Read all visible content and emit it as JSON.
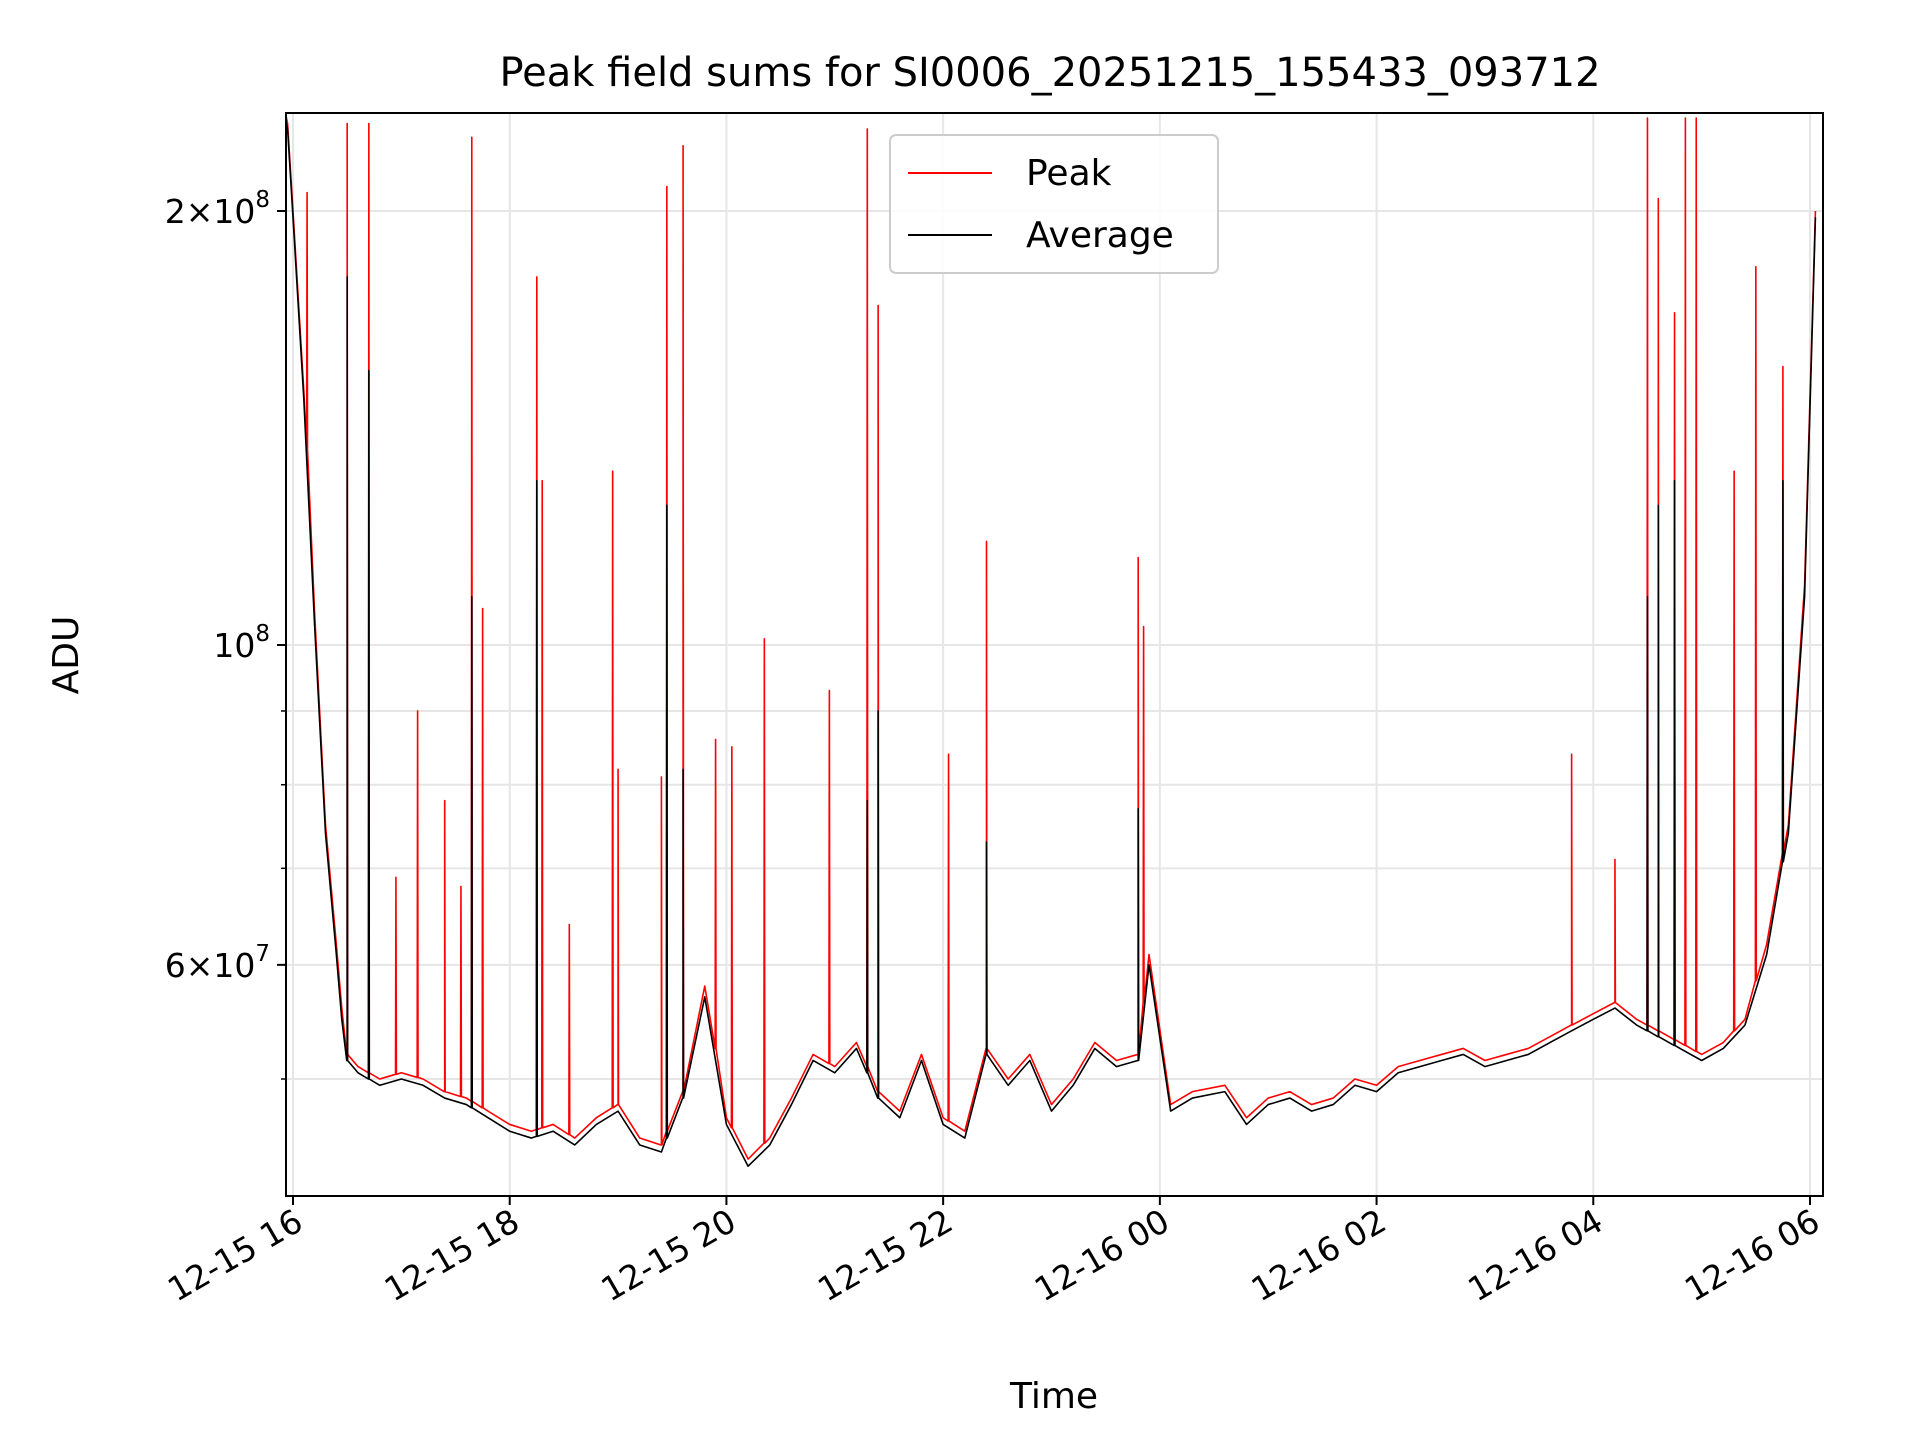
{
  "chart_data": {
    "type": "line",
    "title": "Peak field sums for SI0006_20251215_155433_093712",
    "xlabel": "Time",
    "ylabel": "ADU",
    "yscale": "log",
    "grid": true,
    "legend_position": "top-center",
    "x_range": [
      "2025-12-15 15:54",
      "2025-12-16 06:07"
    ],
    "y_range": [
      43000000,
      237000000
    ],
    "x_ticks": [
      {
        "label": "12-15 16",
        "hours": 16
      },
      {
        "label": "12-15 18",
        "hours": 18
      },
      {
        "label": "12-15 20",
        "hours": 20
      },
      {
        "label": "12-15 22",
        "hours": 22
      },
      {
        "label": "12-16 00",
        "hours": 24
      },
      {
        "label": "12-16 02",
        "hours": 26
      },
      {
        "label": "12-16 04",
        "hours": 28
      },
      {
        "label": "12-16 06",
        "hours": 30
      }
    ],
    "y_ticks": [
      {
        "base": "2×10",
        "exp": "8",
        "value": 200000000
      },
      {
        "base": "10",
        "exp": "8",
        "value": 100000000
      },
      {
        "base": "6×10",
        "exp": "7",
        "value": 60000000
      }
    ],
    "series": [
      {
        "name": "Peak",
        "color": "#ff0000",
        "x": [
          15.9,
          15.95,
          16.0,
          16.1,
          16.2,
          16.3,
          16.4,
          16.45,
          16.5,
          16.6,
          16.8,
          17.0,
          17.2,
          17.4,
          17.6,
          17.8,
          18.0,
          18.2,
          18.4,
          18.6,
          18.8,
          19.0,
          19.2,
          19.4,
          19.6,
          19.8,
          20.0,
          20.2,
          20.4,
          20.6,
          20.8,
          21.0,
          21.2,
          21.4,
          21.6,
          21.8,
          22.0,
          22.2,
          22.4,
          22.6,
          22.8,
          23.0,
          23.2,
          23.4,
          23.6,
          23.8,
          23.9,
          24.1,
          24.3,
          24.6,
          24.8,
          25.0,
          25.2,
          25.4,
          25.6,
          25.8,
          26.0,
          26.2,
          26.4,
          26.6,
          26.8,
          27.0,
          27.2,
          27.4,
          27.6,
          27.8,
          28.0,
          28.2,
          28.4,
          28.6,
          28.8,
          29.0,
          29.2,
          29.4,
          29.6,
          29.8,
          29.95,
          30.05
        ],
        "y": [
          240000000,
          230000000,
          200000000,
          150000000,
          105000000,
          75000000,
          62000000,
          56000000,
          52000000,
          51000000,
          50000000,
          50500000,
          50000000,
          49000000,
          48500000,
          47500000,
          46500000,
          46000000,
          46500000,
          45500000,
          47000000,
          48000000,
          45500000,
          45000000,
          49000000,
          58000000,
          47000000,
          44000000,
          45500000,
          48500000,
          52000000,
          51000000,
          53000000,
          49000000,
          47500000,
          52000000,
          47000000,
          46000000,
          52500000,
          50000000,
          52000000,
          48000000,
          50000000,
          53000000,
          51500000,
          52000000,
          61000000,
          48000000,
          49000000,
          49500000,
          47000000,
          48500000,
          49000000,
          48000000,
          48500000,
          50000000,
          49500000,
          51000000,
          51500000,
          52000000,
          52500000,
          51500000,
          52000000,
          52500000,
          53500000,
          54500000,
          55500000,
          56500000,
          55000000,
          54000000,
          53000000,
          52000000,
          53000000,
          55000000,
          62000000,
          75000000,
          110000000,
          200000000
        ],
        "spikes": [
          {
            "x": 16.13,
            "y": 206000000
          },
          {
            "x": 16.5,
            "y": 230000000
          },
          {
            "x": 16.7,
            "y": 230000000
          },
          {
            "x": 16.95,
            "y": 69000000
          },
          {
            "x": 17.15,
            "y": 90000000
          },
          {
            "x": 17.4,
            "y": 78000000
          },
          {
            "x": 17.55,
            "y": 68000000
          },
          {
            "x": 17.65,
            "y": 225000000
          },
          {
            "x": 17.75,
            "y": 106000000
          },
          {
            "x": 18.25,
            "y": 180000000
          },
          {
            "x": 18.3,
            "y": 130000000
          },
          {
            "x": 18.55,
            "y": 64000000
          },
          {
            "x": 18.95,
            "y": 132000000
          },
          {
            "x": 19.0,
            "y": 82000000
          },
          {
            "x": 19.4,
            "y": 81000000
          },
          {
            "x": 19.45,
            "y": 208000000
          },
          {
            "x": 19.6,
            "y": 222000000
          },
          {
            "x": 19.9,
            "y": 86000000
          },
          {
            "x": 20.05,
            "y": 85000000
          },
          {
            "x": 20.35,
            "y": 101000000
          },
          {
            "x": 20.95,
            "y": 93000000
          },
          {
            "x": 21.3,
            "y": 228000000
          },
          {
            "x": 21.4,
            "y": 172000000
          },
          {
            "x": 22.05,
            "y": 84000000
          },
          {
            "x": 22.4,
            "y": 118000000
          },
          {
            "x": 23.8,
            "y": 115000000
          },
          {
            "x": 23.85,
            "y": 103000000
          },
          {
            "x": 27.8,
            "y": 84000000
          },
          {
            "x": 28.2,
            "y": 71000000
          },
          {
            "x": 28.5,
            "y": 232000000
          },
          {
            "x": 28.6,
            "y": 204000000
          },
          {
            "x": 28.75,
            "y": 170000000
          },
          {
            "x": 28.85,
            "y": 232000000
          },
          {
            "x": 28.95,
            "y": 232000000
          },
          {
            "x": 29.3,
            "y": 132000000
          },
          {
            "x": 29.5,
            "y": 183000000
          },
          {
            "x": 29.75,
            "y": 156000000
          }
        ]
      },
      {
        "name": "Average",
        "color": "#000000",
        "x": [
          15.9,
          15.95,
          16.0,
          16.1,
          16.2,
          16.3,
          16.4,
          16.45,
          16.5,
          16.6,
          16.8,
          17.0,
          17.2,
          17.4,
          17.6,
          17.8,
          18.0,
          18.2,
          18.4,
          18.6,
          18.8,
          19.0,
          19.2,
          19.4,
          19.6,
          19.8,
          20.0,
          20.2,
          20.4,
          20.6,
          20.8,
          21.0,
          21.2,
          21.4,
          21.6,
          21.8,
          22.0,
          22.2,
          22.4,
          22.6,
          22.8,
          23.0,
          23.2,
          23.4,
          23.6,
          23.8,
          23.9,
          24.1,
          24.3,
          24.6,
          24.8,
          25.0,
          25.2,
          25.4,
          25.6,
          25.8,
          26.0,
          26.2,
          26.4,
          26.6,
          26.8,
          27.0,
          27.2,
          27.4,
          27.6,
          27.8,
          28.0,
          28.2,
          28.4,
          28.6,
          28.8,
          29.0,
          29.2,
          29.4,
          29.6,
          29.8,
          29.95,
          30.05
        ],
        "y": [
          238000000,
          228000000,
          198000000,
          148000000,
          103000000,
          74000000,
          61000000,
          55000000,
          51500000,
          50500000,
          49500000,
          50000000,
          49500000,
          48500000,
          48000000,
          47000000,
          46000000,
          45500000,
          46000000,
          45000000,
          46500000,
          47500000,
          45000000,
          44500000,
          48500000,
          57000000,
          46500000,
          43500000,
          45000000,
          48000000,
          51500000,
          50500000,
          52500000,
          48500000,
          47000000,
          51500000,
          46500000,
          45500000,
          52000000,
          49500000,
          51500000,
          47500000,
          49500000,
          52500000,
          51000000,
          51500000,
          60000000,
          47500000,
          48500000,
          49000000,
          46500000,
          48000000,
          48500000,
          47500000,
          48000000,
          49500000,
          49000000,
          50500000,
          51000000,
          51500000,
          52000000,
          51000000,
          51500000,
          52000000,
          53000000,
          54000000,
          55000000,
          56000000,
          54500000,
          53500000,
          52500000,
          51500000,
          52500000,
          54500000,
          61000000,
          74000000,
          108000000,
          198000000
        ],
        "spikes": [
          {
            "x": 16.5,
            "y": 180000000
          },
          {
            "x": 16.7,
            "y": 155000000
          },
          {
            "x": 17.65,
            "y": 108000000
          },
          {
            "x": 18.25,
            "y": 130000000
          },
          {
            "x": 19.45,
            "y": 125000000
          },
          {
            "x": 19.6,
            "y": 82000000
          },
          {
            "x": 21.3,
            "y": 78000000
          },
          {
            "x": 21.4,
            "y": 90000000
          },
          {
            "x": 22.4,
            "y": 73000000
          },
          {
            "x": 23.8,
            "y": 77000000
          },
          {
            "x": 28.5,
            "y": 108000000
          },
          {
            "x": 28.6,
            "y": 125000000
          },
          {
            "x": 28.75,
            "y": 130000000
          },
          {
            "x": 29.75,
            "y": 130000000
          }
        ]
      }
    ]
  }
}
